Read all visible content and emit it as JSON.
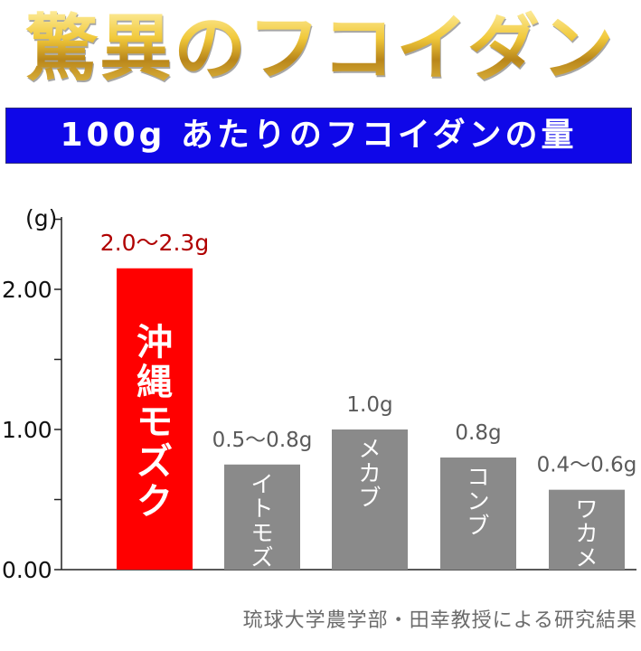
{
  "headline": "驚異のフコイダン",
  "subtitle": "100g あたりのフコイダンの量",
  "source": "琉球大学農学部・田幸教授による研究結果",
  "colors": {
    "highlight_bar": "#ff0000",
    "bar": "#8a8a8a",
    "highlight_label": "#b00000",
    "label": "#5a5a5a",
    "banner": "#0f07e8"
  },
  "chart_data": {
    "type": "bar",
    "ylabel": "(g)",
    "ylim": [
      0,
      2.5
    ],
    "yticks": [
      "0.00",
      "1.00",
      "2.00"
    ],
    "categories": [
      "沖縄モズク",
      "イトモズク",
      "メカブ",
      "コンブ",
      "ワカメ"
    ],
    "values": [
      2.15,
      0.75,
      1.0,
      0.8,
      0.57
    ],
    "value_labels": [
      "2.0～2.3g",
      "0.5～0.8g",
      "1.0g",
      "0.8g",
      "0.4～0.6g"
    ],
    "highlight_index": 0
  }
}
